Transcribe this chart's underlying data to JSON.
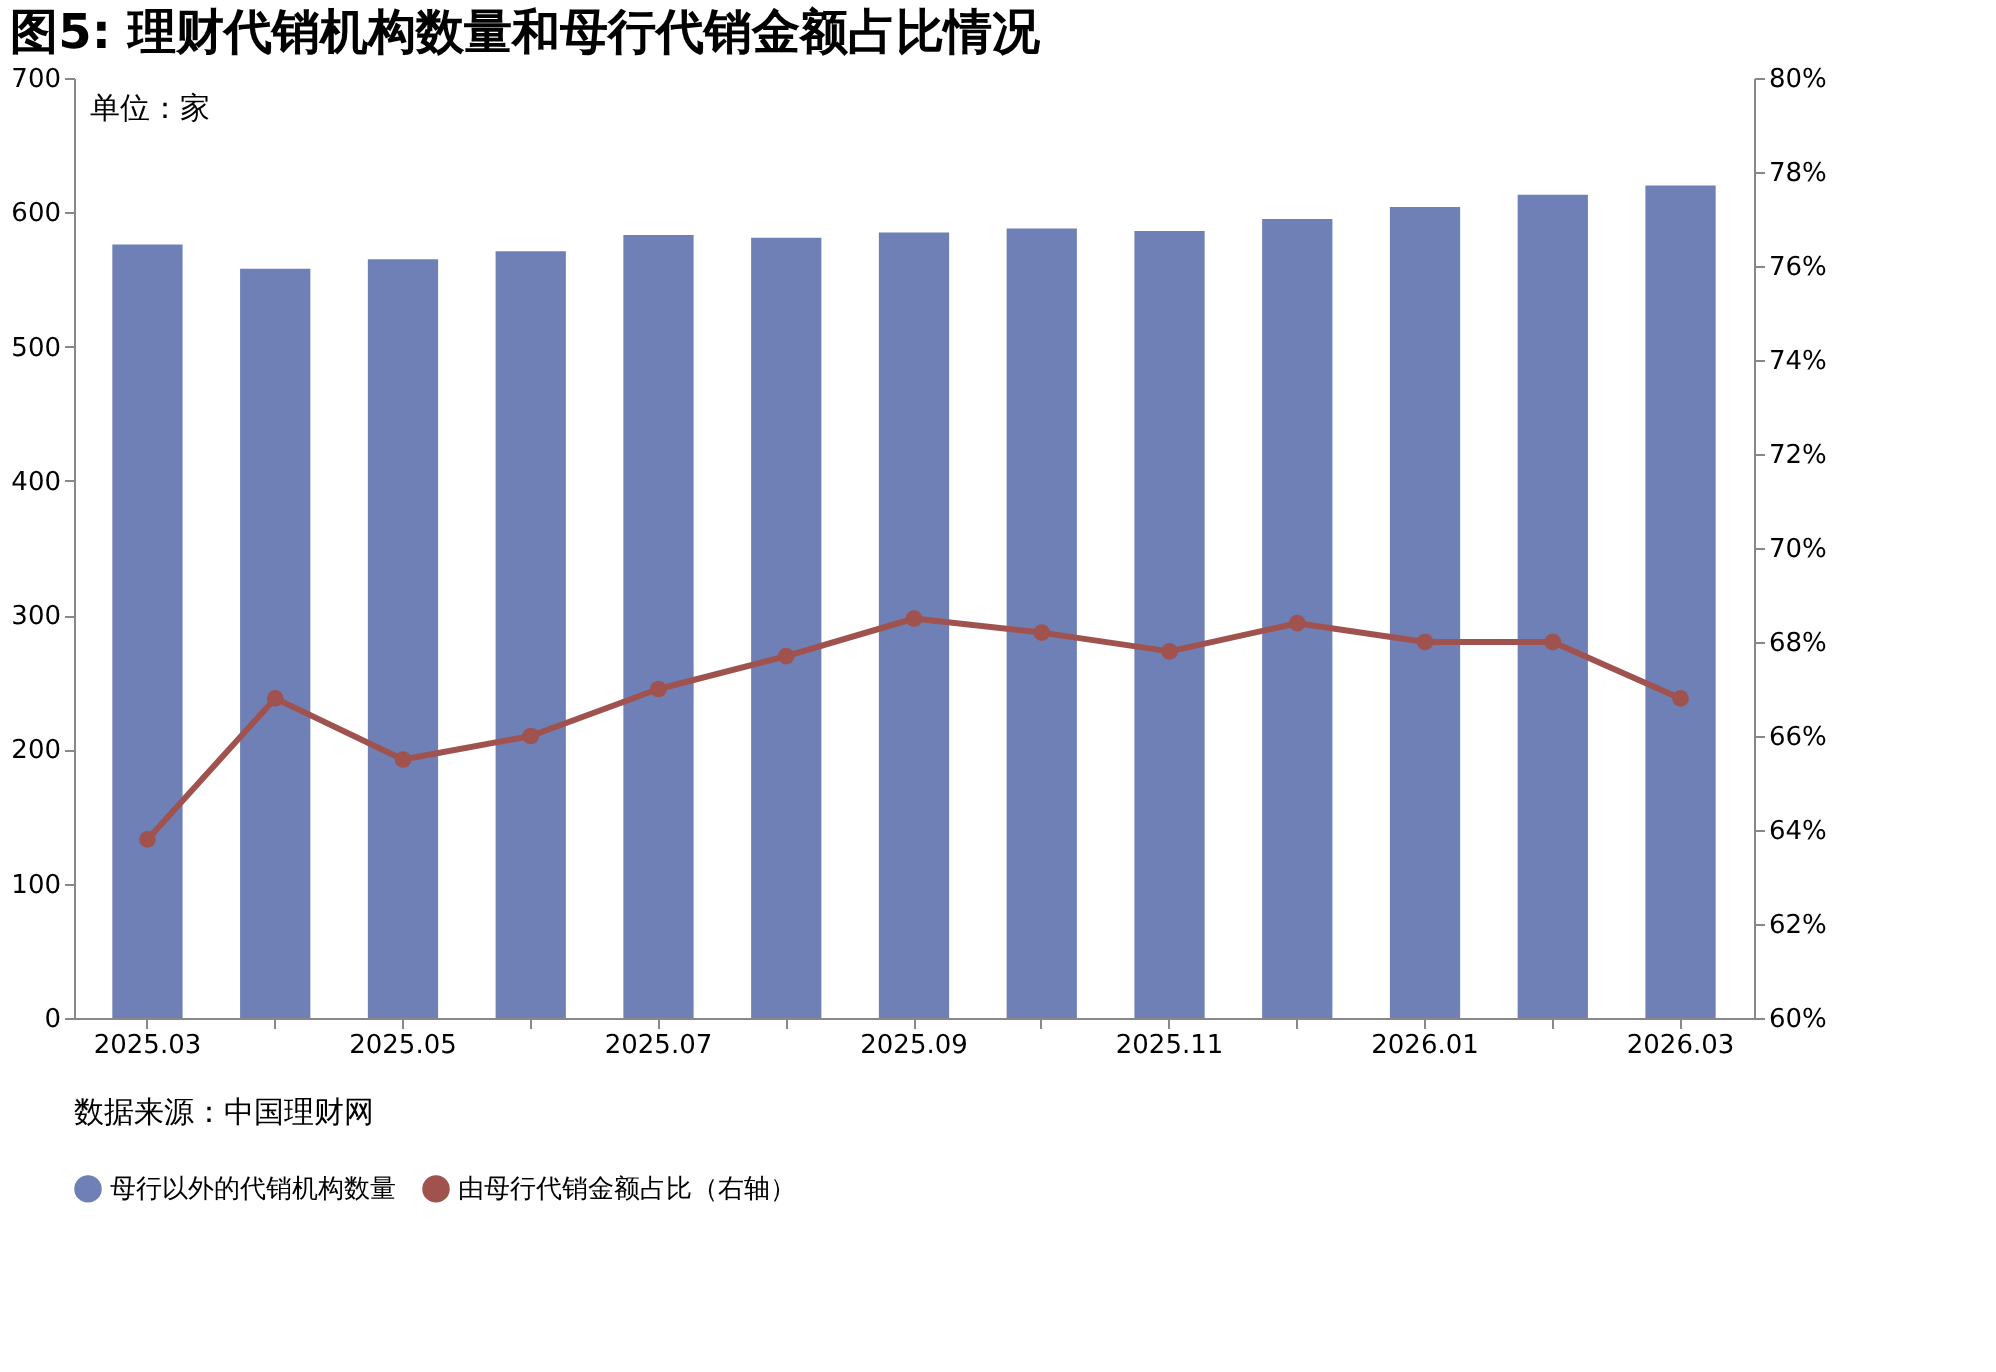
{
  "chart_data": {
    "type": "bar",
    "title": "图5: 理财代销机构数量和母行代销金额占比情况",
    "categories": [
      "2025.03",
      null,
      "2025.05",
      null,
      "2025.07",
      null,
      "2025.09",
      null,
      "2025.11",
      null,
      "2026.01",
      null,
      "2026.03"
    ],
    "series": [
      {
        "name": "母行以外的代销机构数量",
        "color": "#6f80b6",
        "values": [
          576,
          558,
          565,
          571,
          583,
          581,
          585,
          588,
          586,
          595,
          604,
          613,
          620
        ]
      },
      {
        "name": "由母行代销金额占比（右轴）",
        "type": "line",
        "axis": "y2",
        "color": "#a0524e",
        "marker": "circle",
        "values": [
          63.8,
          66.8,
          65.5,
          66.0,
          67.0,
          67.7,
          68.5,
          68.2,
          67.8,
          68.4,
          68.0,
          68.0,
          66.8
        ]
      }
    ],
    "ylim": [
      0,
      700
    ],
    "yticks": [
      0,
      100,
      200,
      300,
      400,
      500,
      600,
      700
    ],
    "y2lim": [
      60,
      80
    ],
    "y2ticks": [
      {
        "value": 60,
        "label": "60%"
      },
      {
        "value": 62,
        "label": "62%"
      },
      {
        "value": 64,
        "label": "64%"
      },
      {
        "value": 66,
        "label": "66%"
      },
      {
        "value": 68,
        "label": "68%"
      },
      {
        "value": 70,
        "label": "70%"
      },
      {
        "value": 72,
        "label": "72%"
      },
      {
        "value": 74,
        "label": "74%"
      },
      {
        "value": 76,
        "label": "76%"
      },
      {
        "value": 78,
        "label": "78%"
      },
      {
        "value": 80,
        "label": "80%"
      }
    ],
    "annotations": [
      "单位：家",
      "数据来源：中国理财网"
    ],
    "legend": "bottom",
    "grid": false
  }
}
